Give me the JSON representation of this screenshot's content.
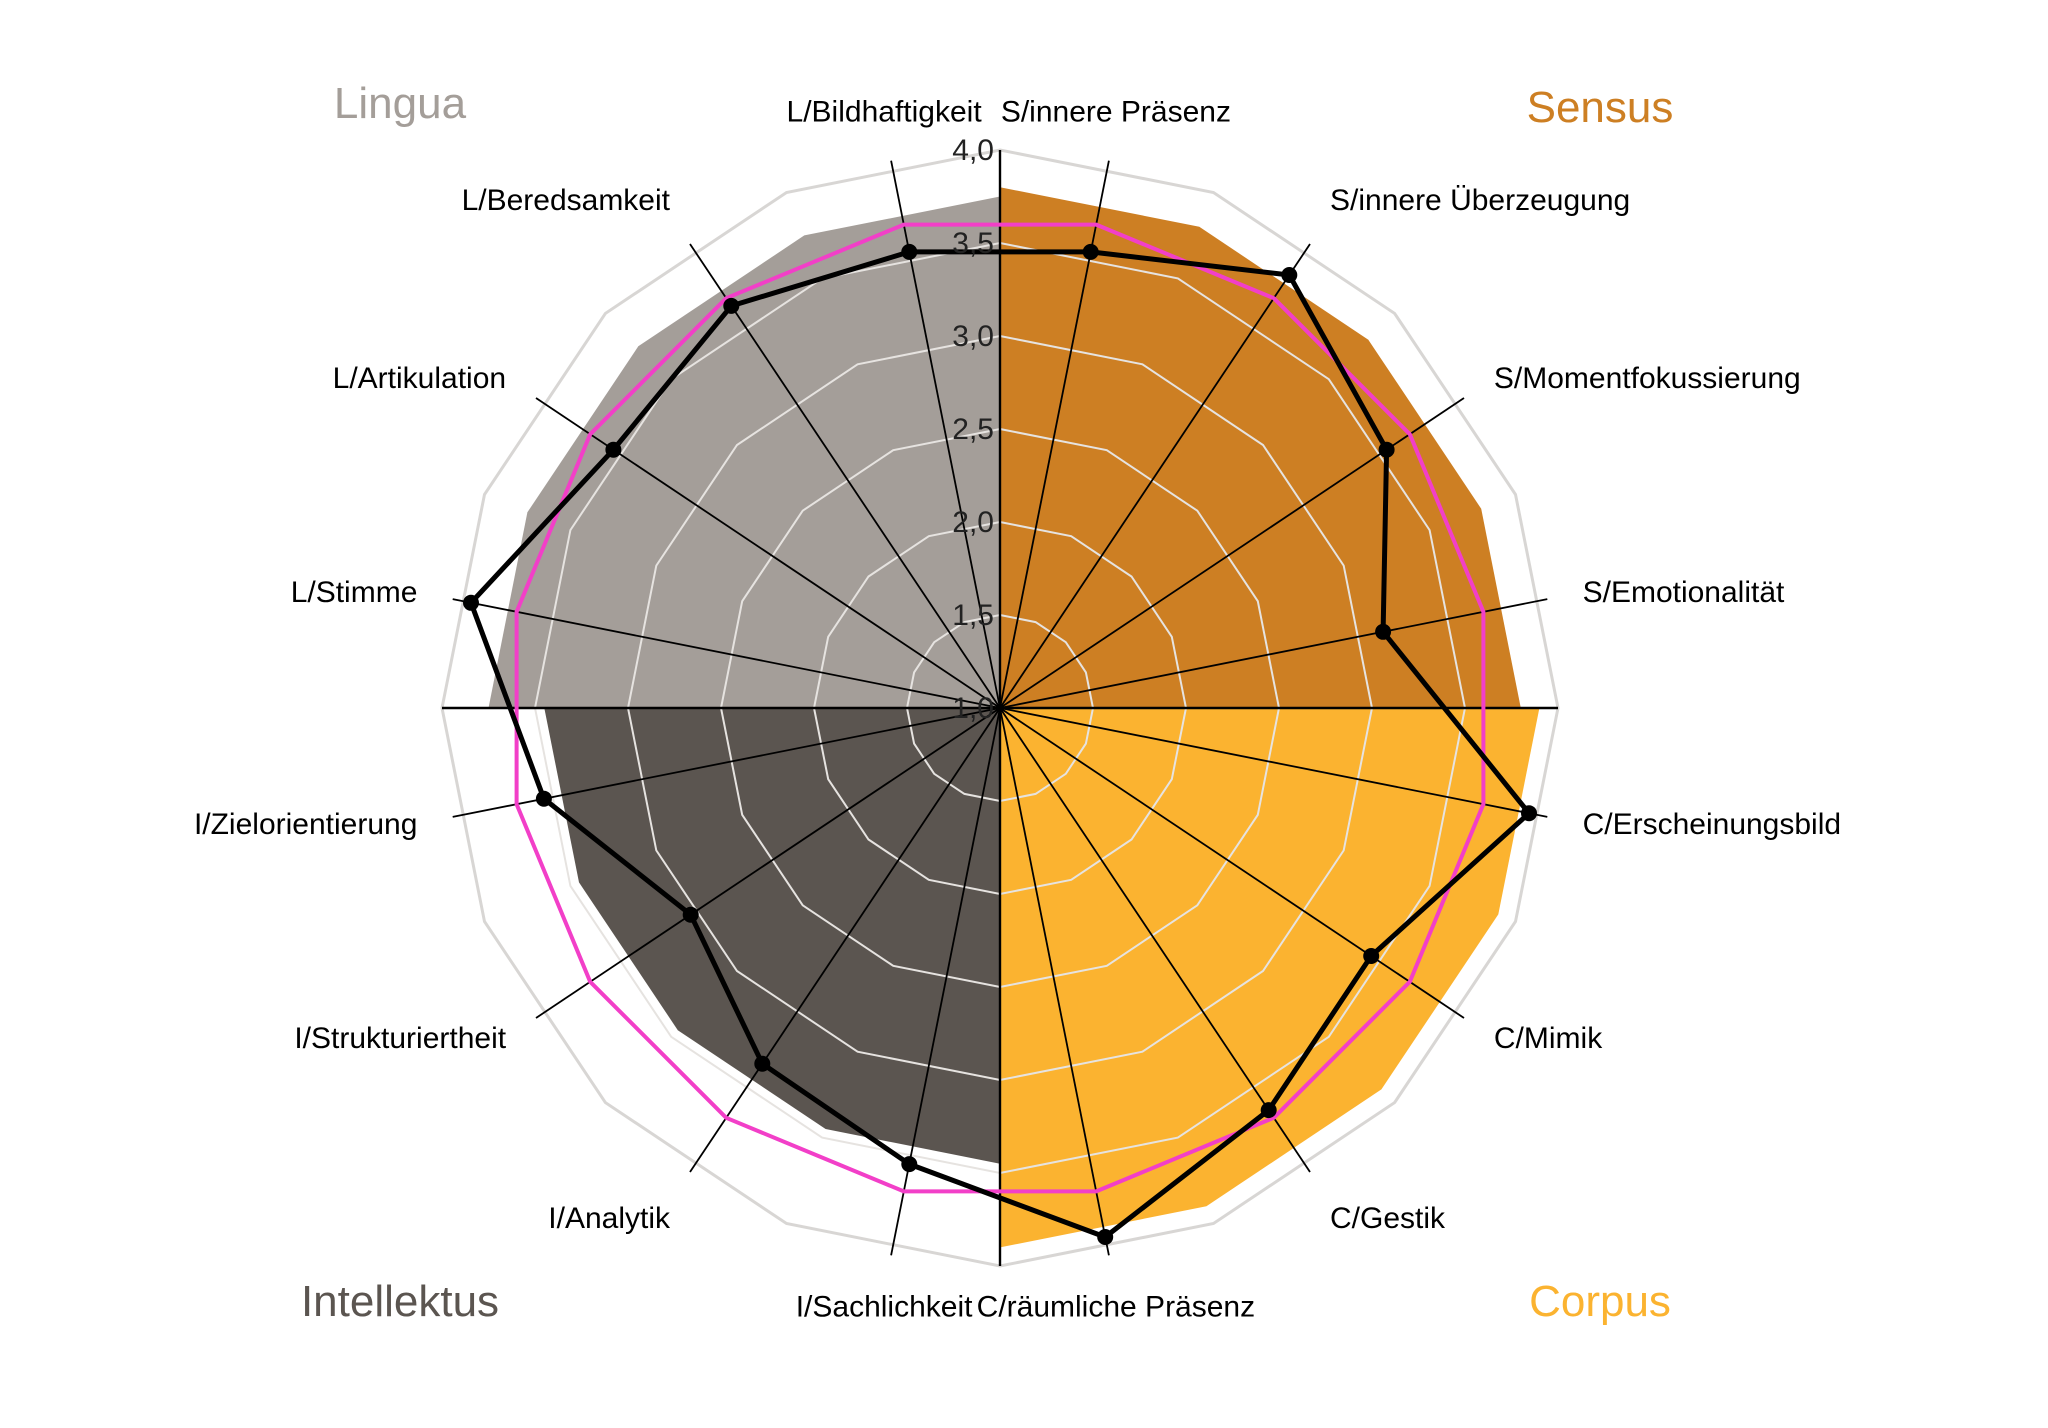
{
  "chart_data": {
    "type": "radar",
    "rmin": 1.0,
    "rmax": 4.0,
    "ticks": [
      "1,0",
      "1,5",
      "2,0",
      "2,5",
      "3,0",
      "3,5",
      "4,0"
    ],
    "tick_values": [
      1.0,
      1.5,
      2.0,
      2.5,
      3.0,
      3.5,
      4.0
    ],
    "axes": [
      "S/innere Präsenz",
      "S/innere Überzeugung",
      "S/Momentfokussierung",
      "S/Emotionalität",
      "C/Erscheinungsbild",
      "C/Mimik",
      "C/Gestik",
      "C/räumliche Präsenz",
      "I/Sachlichkeit",
      "I/Analytik",
      "I/Strukturiertheit",
      "I/Zielorientierung",
      "L/Stimme",
      "L/Artikulation",
      "L/Beredsamkeit",
      "L/Bildhaftigkeit"
    ],
    "groups": [
      {
        "name": "Sensus",
        "color": "#CD7F23",
        "start_angle": 0,
        "end_angle": 90,
        "value": 3.8
      },
      {
        "name": "Corpus",
        "color": "#FBB330",
        "start_angle": 90,
        "end_angle": 180,
        "value": 3.9
      },
      {
        "name": "Intellektus",
        "color": "#5B5550",
        "start_angle": 180,
        "end_angle": 270,
        "value": 3.45
      },
      {
        "name": "Lingua",
        "color": "#A49E99",
        "start_angle": 270,
        "end_angle": 360,
        "value": 3.75
      }
    ],
    "series": [
      {
        "color": "#F23FC8",
        "values": [
          3.65,
          3.65,
          3.65,
          3.65,
          3.65,
          3.65,
          3.65,
          3.65,
          3.65,
          3.65,
          3.65,
          3.65,
          3.65,
          3.65,
          3.65,
          3.65
        ]
      },
      {
        "color": "#000000",
        "values": [
          3.5,
          3.8,
          3.5,
          3.1,
          3.9,
          3.4,
          3.6,
          3.9,
          3.5,
          3.3,
          3.0,
          3.5,
          3.9,
          3.5,
          3.6,
          3.5
        ]
      }
    ],
    "grid": true,
    "grid_color": "#E6E3E0",
    "outer_ring_color": "#D8D6D4"
  }
}
